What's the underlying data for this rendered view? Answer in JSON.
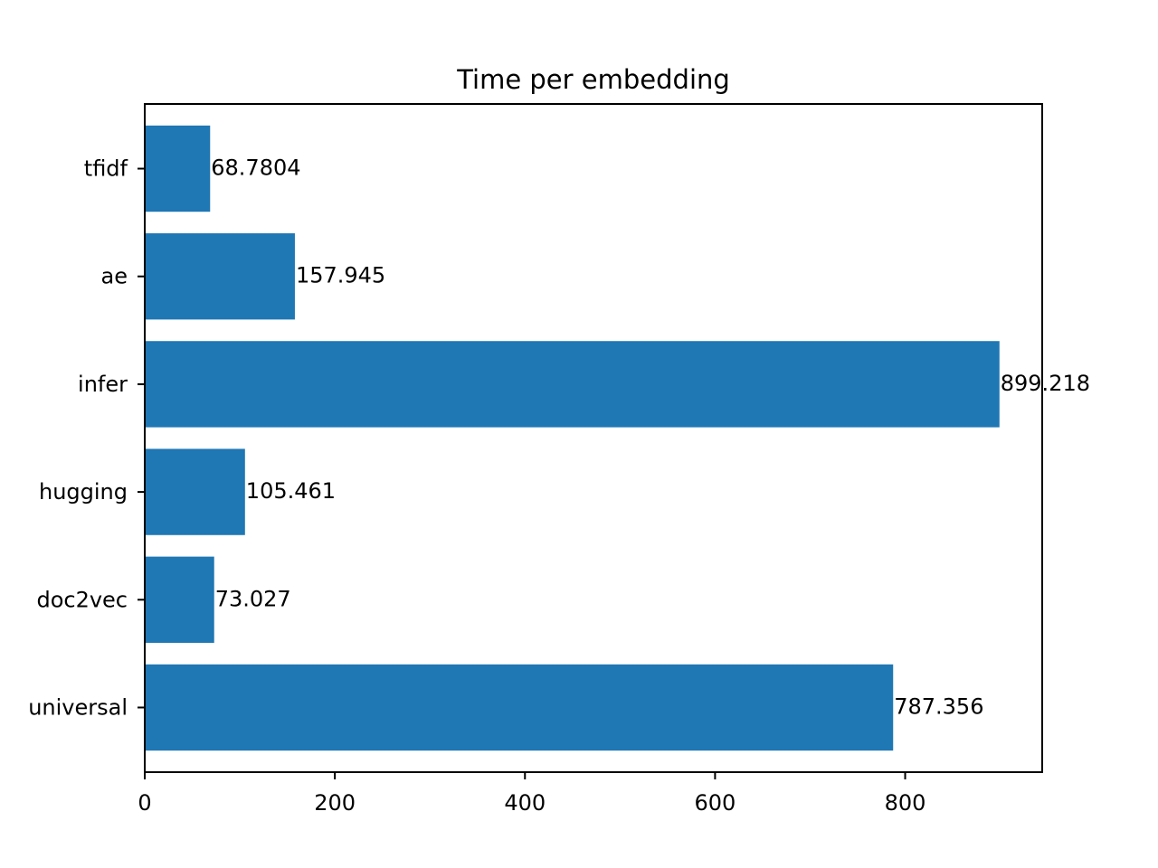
{
  "chart_data": {
    "type": "bar",
    "orientation": "horizontal",
    "title": "Time per embedding",
    "xlabel": "",
    "ylabel": "",
    "categories": [
      "universal",
      "doc2vec",
      "hugging",
      "infer",
      "ae",
      "tfidf"
    ],
    "values": [
      787.356,
      73.027,
      105.461,
      899.218,
      157.945,
      68.7804
    ],
    "data_labels": [
      "787.356",
      "73.027",
      "105.461",
      "899.218",
      "157.945",
      "68.7804"
    ],
    "xlim": [
      0,
      944.18
    ],
    "xticks": [
      0,
      200,
      400,
      600,
      800
    ],
    "xtick_labels": [
      "0",
      "200",
      "400",
      "600",
      "800"
    ],
    "grid": false,
    "legend": "none",
    "bar_color": "#1f77b4"
  }
}
